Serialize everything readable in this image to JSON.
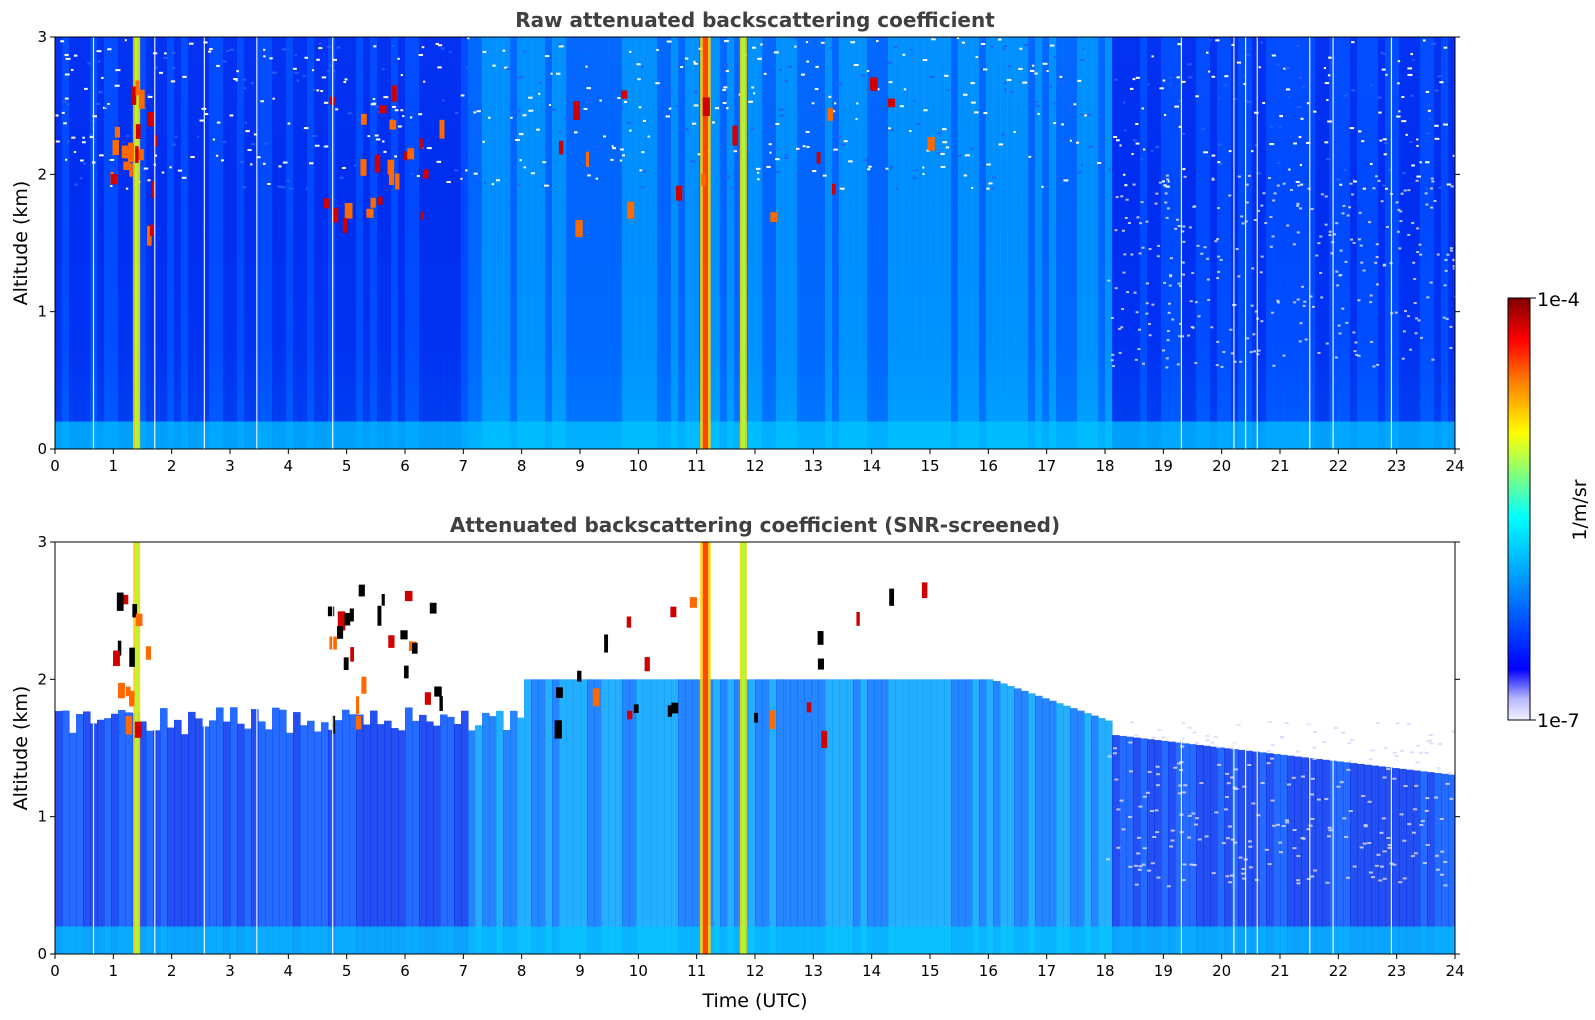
{
  "chart_data": [
    {
      "type": "heatmap",
      "title": "Raw attenuated backscattering coefficient",
      "xlabel": "",
      "ylabel": "Altitude (km)",
      "xlim": [
        0,
        24
      ],
      "ylim": [
        0,
        3
      ],
      "xticks": [
        "0",
        "1",
        "2",
        "3",
        "4",
        "5",
        "6",
        "7",
        "8",
        "9",
        "10",
        "11",
        "12",
        "13",
        "14",
        "15",
        "16",
        "17",
        "18",
        "19",
        "20",
        "21",
        "22",
        "23",
        "24"
      ],
      "yticks": [
        "0",
        "1",
        "2",
        "3"
      ],
      "screened": false
    },
    {
      "type": "heatmap",
      "title": "Attenuated backscattering coefficient (SNR-screened)",
      "xlabel": "Time (UTC)",
      "ylabel": "Altitude (km)",
      "xlim": [
        0,
        24
      ],
      "ylim": [
        0,
        3
      ],
      "xticks": [
        "0",
        "1",
        "2",
        "3",
        "4",
        "5",
        "6",
        "7",
        "8",
        "9",
        "10",
        "11",
        "12",
        "13",
        "14",
        "15",
        "16",
        "17",
        "18",
        "19",
        "20",
        "21",
        "22",
        "23",
        "24"
      ],
      "yticks": [
        "0",
        "1",
        "2",
        "3"
      ],
      "screened": true
    }
  ],
  "colorbar": {
    "label": "1/m/sr",
    "max_label": "1e-4",
    "min_label": "1e-7",
    "colormap": "jet-with-white-low",
    "colors": [
      "#f0f0ff",
      "#b8b8ff",
      "#0000ff",
      "#0080ff",
      "#00ffff",
      "#80ff80",
      "#ffff00",
      "#ff8000",
      "#ff0000",
      "#800000"
    ]
  },
  "features": {
    "plume_columns_utc": [
      1.4,
      11.15,
      11.8
    ],
    "cloud_base_km_range": [
      1.5,
      2.6
    ]
  }
}
